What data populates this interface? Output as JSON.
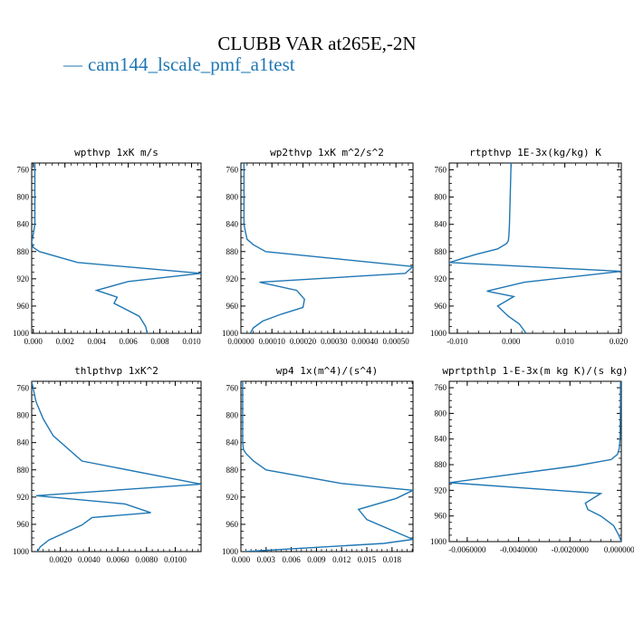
{
  "figure": {
    "title": "CLUBB VAR at265E,-2N",
    "legend_label": "cam144_lscale_pmf_a1test",
    "legend_color": "#1f77b4"
  },
  "chart_data": [
    {
      "type": "line",
      "title": "wpthvp  1xK m/s",
      "xlim": [
        -0.0001,
        0.0106
      ],
      "ylim": [
        1000,
        750
      ],
      "xticks": [
        0.0,
        0.002,
        0.004,
        0.006,
        0.008,
        0.01
      ],
      "xtick_labels": [
        "0.000",
        "0.002",
        "0.004",
        "0.006",
        "0.008",
        "0.010"
      ],
      "yticks": [
        760,
        800,
        840,
        880,
        920,
        960,
        1000
      ],
      "ytick_labels": [
        "760",
        "800",
        "840",
        "880",
        "920",
        "960",
        "1000"
      ],
      "series": [
        {
          "x": [
            0.0001,
            0.0001,
            0.0001,
            0.0001,
            0.0,
            -0.0001,
            0.0,
            0.0004,
            0.0028,
            0.0106,
            0.006,
            0.004,
            0.0053,
            0.0051,
            0.0067,
            0.0071,
            0.0072
          ],
          "y": [
            750,
            780,
            810,
            840,
            855,
            866,
            874,
            880,
            896,
            912,
            924,
            937,
            947,
            956,
            975,
            990,
            1000
          ]
        }
      ]
    },
    {
      "type": "line",
      "title": "wp2thvp  1xK m^2/s^2",
      "xlim": [
        0.0,
        0.000555
      ],
      "ylim": [
        1000,
        750
      ],
      "xticks": [
        0.0,
        0.0001,
        0.0002,
        0.0003,
        0.0004,
        0.0005
      ],
      "xtick_labels": [
        "0.00000",
        "0.00010",
        "0.00020",
        "0.00030",
        "0.00040",
        "0.00050"
      ],
      "yticks": [
        760,
        800,
        840,
        880,
        920,
        960,
        1000
      ],
      "ytick_labels": [
        "760",
        "800",
        "840",
        "880",
        "920",
        "960",
        "1000"
      ],
      "series": [
        {
          "x": [
            1e-05,
            1e-05,
            1e-05,
            1e-05,
            1.5e-05,
            2e-05,
            4e-05,
            8e-05,
            0.000555,
            0.00053,
            6e-05,
            0.00018,
            0.000205,
            0.0002,
            0.00013,
            7e-05,
            4e-05,
            3e-05
          ],
          "y": [
            750,
            780,
            810,
            840,
            852,
            862,
            870,
            880,
            902,
            912,
            925,
            937,
            950,
            962,
            972,
            982,
            992,
            1000
          ]
        }
      ]
    },
    {
      "type": "line",
      "title": "rtpthvp  1E-3x(kg/kg) K",
      "xlim": [
        -0.0115,
        0.0205
      ],
      "ylim": [
        1000,
        750
      ],
      "xticks": [
        -0.01,
        0.0,
        0.01,
        0.02
      ],
      "xtick_labels": [
        "-0.010",
        "0.000",
        "0.010",
        "0.020"
      ],
      "yticks": [
        760,
        800,
        840,
        880,
        920,
        960,
        1000
      ],
      "ytick_labels": [
        "760",
        "800",
        "840",
        "880",
        "920",
        "960",
        "1000"
      ],
      "series": [
        {
          "x": [
            0.0,
            -0.0001,
            -0.0002,
            -0.0003,
            -0.0004,
            -0.0005,
            -0.0008,
            -0.0025,
            -0.0065,
            -0.0115,
            0.0205,
            0.0025,
            -0.0045,
            0.0005,
            -0.0025,
            -0.0005,
            0.0015,
            0.0028
          ],
          "y": [
            750,
            780,
            810,
            840,
            856,
            864,
            868,
            876,
            884,
            896,
            909,
            925,
            938,
            946,
            960,
            975,
            986,
            1000
          ]
        }
      ]
    },
    {
      "type": "line",
      "title": "thlpthvp  1xK^2",
      "xlim": [
        0.0,
        0.0118
      ],
      "ylim": [
        1000,
        750
      ],
      "xticks": [
        0.002,
        0.004,
        0.006,
        0.008,
        0.01
      ],
      "xtick_labels": [
        "0.0020",
        "0.0040",
        "0.0060",
        "0.0080",
        "0.0100"
      ],
      "yticks": [
        760,
        800,
        840,
        880,
        920,
        960,
        1000
      ],
      "ytick_labels": [
        "760",
        "800",
        "840",
        "880",
        "920",
        "960",
        "1000"
      ],
      "series": [
        {
          "x": [
            0.0,
            0.0003,
            0.0008,
            0.0015,
            0.0035,
            0.0118,
            0.0003,
            0.0065,
            0.0083,
            0.0042,
            0.0035,
            0.0012,
            0.0006,
            0.0004
          ],
          "y": [
            750,
            780,
            805,
            830,
            867,
            901,
            918,
            930,
            943,
            950,
            961,
            983,
            993,
            1000
          ]
        }
      ]
    },
    {
      "type": "line",
      "title": "wp4  1x(m^4)/(s^4)",
      "xlim": [
        0.0,
        0.0205
      ],
      "ylim": [
        1000,
        750
      ],
      "xticks": [
        0.0,
        0.003,
        0.006,
        0.009,
        0.012,
        0.015,
        0.018
      ],
      "xtick_labels": [
        "0.000",
        "0.003",
        "0.006",
        "0.009",
        "0.012",
        "0.015",
        "0.018"
      ],
      "yticks": [
        760,
        800,
        840,
        880,
        920,
        960,
        1000
      ],
      "ytick_labels": [
        "760",
        "800",
        "840",
        "880",
        "920",
        "960",
        "1000"
      ],
      "series": [
        {
          "x": [
            0.0002,
            0.0002,
            0.0002,
            0.0002,
            0.0003,
            0.0006,
            0.0015,
            0.003,
            0.012,
            0.0205,
            0.0185,
            0.014,
            0.015,
            0.0205,
            0.017,
            0.0005
          ],
          "y": [
            750,
            780,
            810,
            840,
            850,
            856,
            867,
            880,
            900,
            910,
            922,
            938,
            953,
            982,
            988,
            1000
          ]
        }
      ]
    },
    {
      "type": "line",
      "title": "wprtpthlp  1-E-3x(m kg K)/(s kg)",
      "xlim": [
        -0.0067,
        0.0
      ],
      "ylim": [
        1000,
        750
      ],
      "xticks": [
        -0.006,
        -0.004,
        -0.002,
        0.0
      ],
      "xtick_labels": [
        "-0.0060000",
        "-0.0040000",
        "-0.0020000",
        "0.0000000"
      ],
      "yticks": [
        760,
        800,
        840,
        880,
        920,
        960,
        1000
      ],
      "ytick_labels": [
        "760",
        "800",
        "840",
        "880",
        "920",
        "960",
        "1000"
      ],
      "series": [
        {
          "x": [
            -3e-05,
            -3e-05,
            -4e-05,
            -5e-05,
            -8e-05,
            -0.00015,
            -0.0004,
            -0.0018,
            -0.0067,
            -0.0008,
            -0.0014,
            -0.0013,
            -0.0008,
            -0.0003,
            -0.0001,
            0.0
          ],
          "y": [
            750,
            780,
            810,
            840,
            855,
            864,
            872,
            882,
            908,
            925,
            940,
            950,
            960,
            975,
            990,
            1000
          ]
        }
      ]
    }
  ]
}
